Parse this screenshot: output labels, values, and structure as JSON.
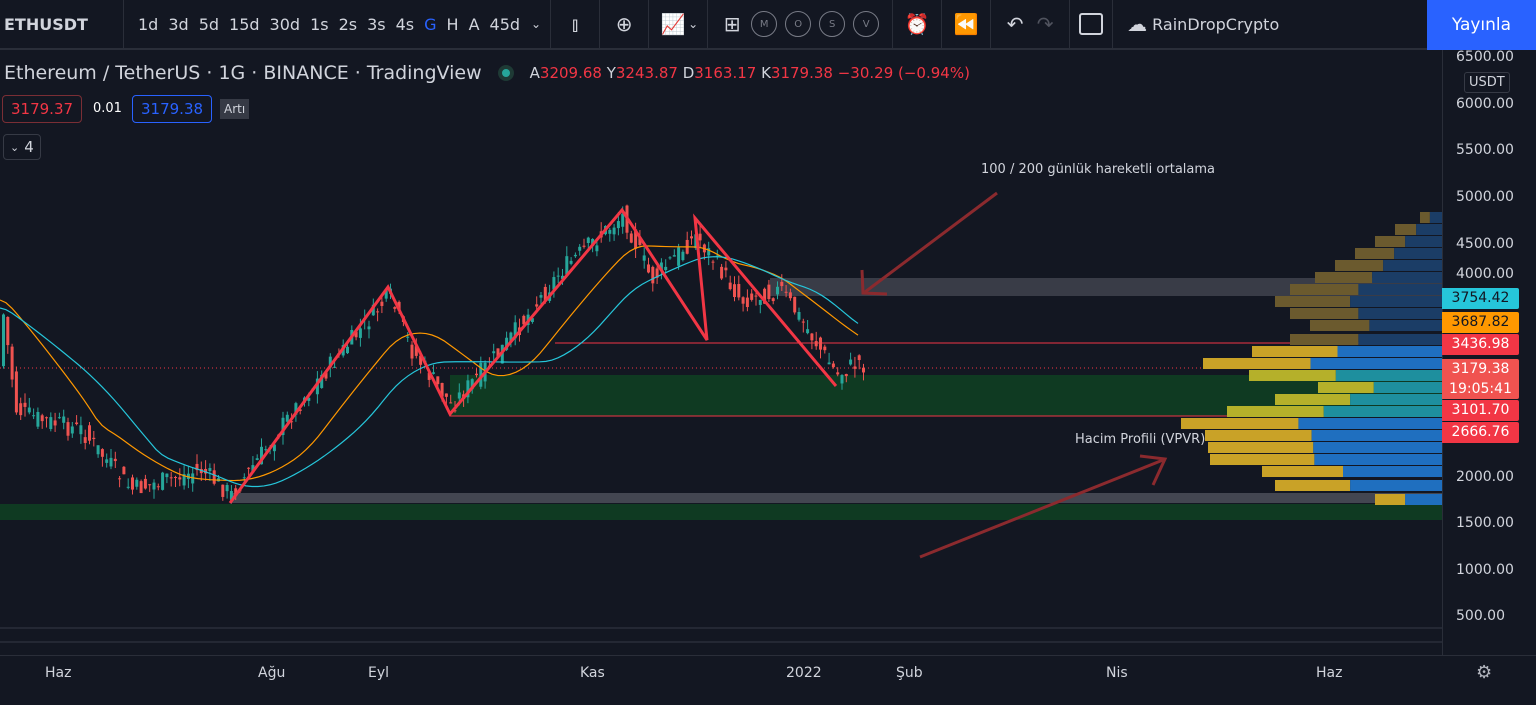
{
  "toolbar": {
    "symbol": "ETHUSDT",
    "intervals": [
      "1d",
      "3d",
      "5d",
      "15d",
      "30d",
      "1s",
      "2s",
      "3s",
      "4s",
      "G",
      "H",
      "A",
      "45d"
    ],
    "active_interval": "G",
    "layout_letters": [
      "M",
      "O",
      "S",
      "V"
    ],
    "account": "RainDropCrypto",
    "publish": "Yayınla"
  },
  "legend": {
    "title": "Ethereum / TetherUS · 1G · BINANCE · TradingView",
    "o_label": "A",
    "o": "3209.68",
    "h_label": "Y",
    "h": "3243.87",
    "l_label": "D",
    "l": "3163.17",
    "c_label": "K",
    "c": "3179.38",
    "change": "−30.29 (−0.94%)",
    "tooltip": "Artı",
    "bid": "3179.37",
    "spread": "0.01",
    "ask": "3179.38",
    "indicators_toggle": "4"
  },
  "price_axis": {
    "currency": "USDT",
    "labels": [
      "6500.00",
      "6000.00",
      "5500.00",
      "5000.00",
      "4500.00",
      "4000.00",
      "2000.00",
      "1500.00",
      "1000.00",
      "500.00"
    ],
    "badges": [
      {
        "value": "3754.42",
        "color": "#26c6da"
      },
      {
        "value": "3687.82",
        "color": "#ff9800"
      },
      {
        "value": "3436.98",
        "color": "#f23645"
      },
      {
        "value": "3179.38",
        "sub": "19:05:41",
        "color": "#f05350"
      },
      {
        "value": "3101.70",
        "color": "#f23645"
      },
      {
        "value": "2666.76",
        "color": "#f23645"
      }
    ]
  },
  "time_axis": [
    "Haz",
    "Ağu",
    "Eyl",
    "Kas",
    "2022",
    "Şub",
    "Nis",
    "Haz"
  ],
  "annotations": {
    "ma": "100 / 200 günlük hareketli ortalama",
    "vpvr": "Hacim Profili (VPVR)"
  }
}
